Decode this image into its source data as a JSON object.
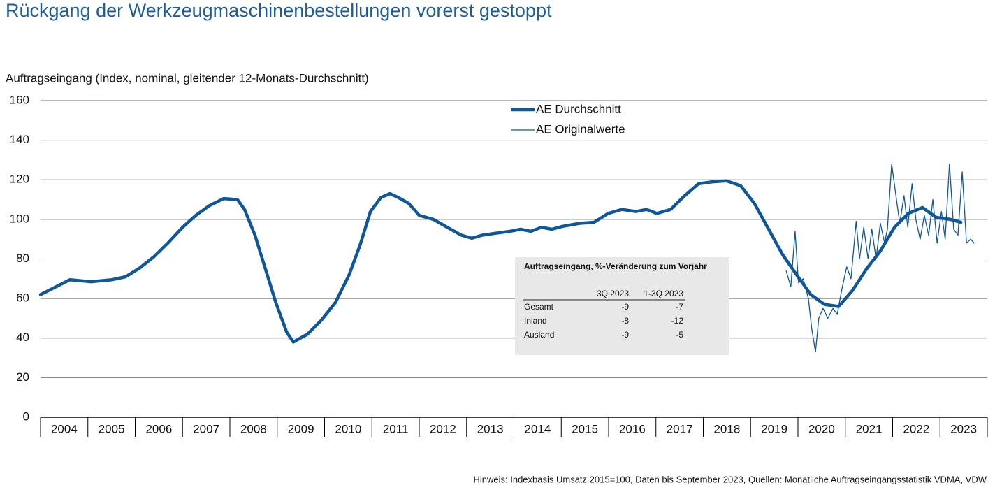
{
  "chart_data": {
    "type": "line",
    "title": "Rückgang der Werkzeugmaschinenbestellungen vorerst gestoppt",
    "y_label": "Auftragseingang (Index, nominal, gleitender 12-Monats-Durchschnitt)",
    "footnote": "Hinweis: Indexbasis Umsatz 2015=100, Daten bis September 2023, Quellen: Monatliche Auftragseingangsstatistik VDMA, VDW",
    "xlim": [
      2004,
      2024
    ],
    "xticks": [
      {
        "value": 2004.5,
        "label": "2004"
      },
      {
        "value": 2005.5,
        "label": "2005"
      },
      {
        "value": 2006.5,
        "label": "2006"
      },
      {
        "value": 2007.5,
        "label": "2007"
      },
      {
        "value": 2008.5,
        "label": "2008"
      },
      {
        "value": 2009.5,
        "label": "2009"
      },
      {
        "value": 2010.5,
        "label": "2010"
      },
      {
        "value": 2011.5,
        "label": "2011"
      },
      {
        "value": 2012.5,
        "label": "2012"
      },
      {
        "value": 2013.5,
        "label": "2013"
      },
      {
        "value": 2014.5,
        "label": "2014"
      },
      {
        "value": 2015.5,
        "label": "2015"
      },
      {
        "value": 2016.5,
        "label": "2016"
      },
      {
        "value": 2017.5,
        "label": "2017"
      },
      {
        "value": 2018.5,
        "label": "2018"
      },
      {
        "value": 2019.5,
        "label": "2019"
      },
      {
        "value": 2020.5,
        "label": "2020"
      },
      {
        "value": 2021.5,
        "label": "2021"
      },
      {
        "value": 2022.5,
        "label": "2022"
      },
      {
        "value": 2023.5,
        "label": "2023"
      }
    ],
    "ylim": [
      0,
      160
    ],
    "yticks": [
      0,
      20,
      40,
      60,
      80,
      100,
      120,
      140,
      160
    ],
    "grid": true,
    "legend": "top",
    "series": [
      {
        "name": "AE Durchschnitt",
        "color": "#0f5796",
        "width": 4.5,
        "x": [
          2004.0,
          2004.62,
          2005.06,
          2005.51,
          2005.8,
          2006.1,
          2006.39,
          2006.69,
          2007.0,
          2007.28,
          2007.57,
          2007.87,
          2008.16,
          2008.31,
          2008.53,
          2008.75,
          2008.97,
          2009.2,
          2009.34,
          2009.64,
          2009.93,
          2010.23,
          2010.52,
          2010.75,
          2010.97,
          2011.19,
          2011.38,
          2011.56,
          2011.78,
          2012.0,
          2012.3,
          2012.59,
          2012.89,
          2013.11,
          2013.33,
          2013.62,
          2013.92,
          2014.14,
          2014.36,
          2014.58,
          2014.8,
          2015.03,
          2015.39,
          2015.69,
          2015.99,
          2016.28,
          2016.58,
          2016.8,
          2017.02,
          2017.31,
          2017.61,
          2017.9,
          2018.2,
          2018.49,
          2018.79,
          2019.08,
          2019.38,
          2019.68,
          2019.97,
          2020.27,
          2020.56,
          2020.86,
          2021.15,
          2021.45,
          2021.74,
          2022.04,
          2022.33,
          2022.63,
          2022.92,
          2023.22,
          2023.44
        ],
        "values": [
          62,
          69.5,
          68.5,
          69.5,
          71,
          75.5,
          81,
          88,
          96,
          102,
          107,
          110.5,
          110,
          105,
          92,
          75,
          58,
          43,
          38,
          42,
          49,
          58,
          72,
          87,
          104,
          111,
          113,
          111,
          108,
          102,
          100,
          96,
          92,
          90.5,
          92,
          93,
          94,
          95,
          94,
          96,
          95,
          96.5,
          98,
          98.5,
          103,
          105,
          104,
          105,
          103,
          105,
          112,
          118,
          119,
          119.5,
          117,
          108,
          95,
          82,
          72,
          62,
          57,
          56,
          64,
          75,
          84,
          96,
          103,
          106,
          101,
          100,
          98.5
        ]
      },
      {
        "name": "AE Originalwerte",
        "color": "#0f5796",
        "width": 1.3,
        "x": [
          2019.75,
          2019.85,
          2019.94,
          2020.01,
          2020.11,
          2020.22,
          2020.29,
          2020.37,
          2020.44,
          2020.53,
          2020.63,
          2020.74,
          2020.83,
          2020.93,
          2021.03,
          2021.12,
          2021.23,
          2021.3,
          2021.39,
          2021.48,
          2021.56,
          2021.65,
          2021.74,
          2021.83,
          2021.89,
          2021.98,
          2022.07,
          2022.15,
          2022.24,
          2022.32,
          2022.41,
          2022.49,
          2022.58,
          2022.67,
          2022.76,
          2022.85,
          2022.94,
          2023.03,
          2023.11,
          2023.2,
          2023.29,
          2023.38,
          2023.47,
          2023.56,
          2023.65,
          2023.72
        ],
        "values": [
          74,
          66,
          94,
          68,
          70,
          60,
          45,
          33,
          50,
          55,
          50,
          55,
          52,
          65,
          76,
          70,
          99,
          80,
          96,
          80,
          95,
          80,
          98,
          88,
          95,
          128,
          112,
          98,
          112,
          96,
          118,
          100,
          90,
          102,
          92,
          110,
          88,
          104,
          90,
          128,
          95,
          92,
          124,
          88,
          90,
          88
        ]
      }
    ],
    "table": {
      "title": "Auftragseingang, %-Veränderung zum Vorjahr",
      "header": [
        "3Q 2023",
        "1-3Q 2023"
      ],
      "rows": [
        [
          "Gesamt",
          -9,
          -7
        ],
        [
          "Inland",
          -8,
          -12
        ],
        [
          "Ausland",
          -9,
          -5
        ]
      ]
    }
  }
}
